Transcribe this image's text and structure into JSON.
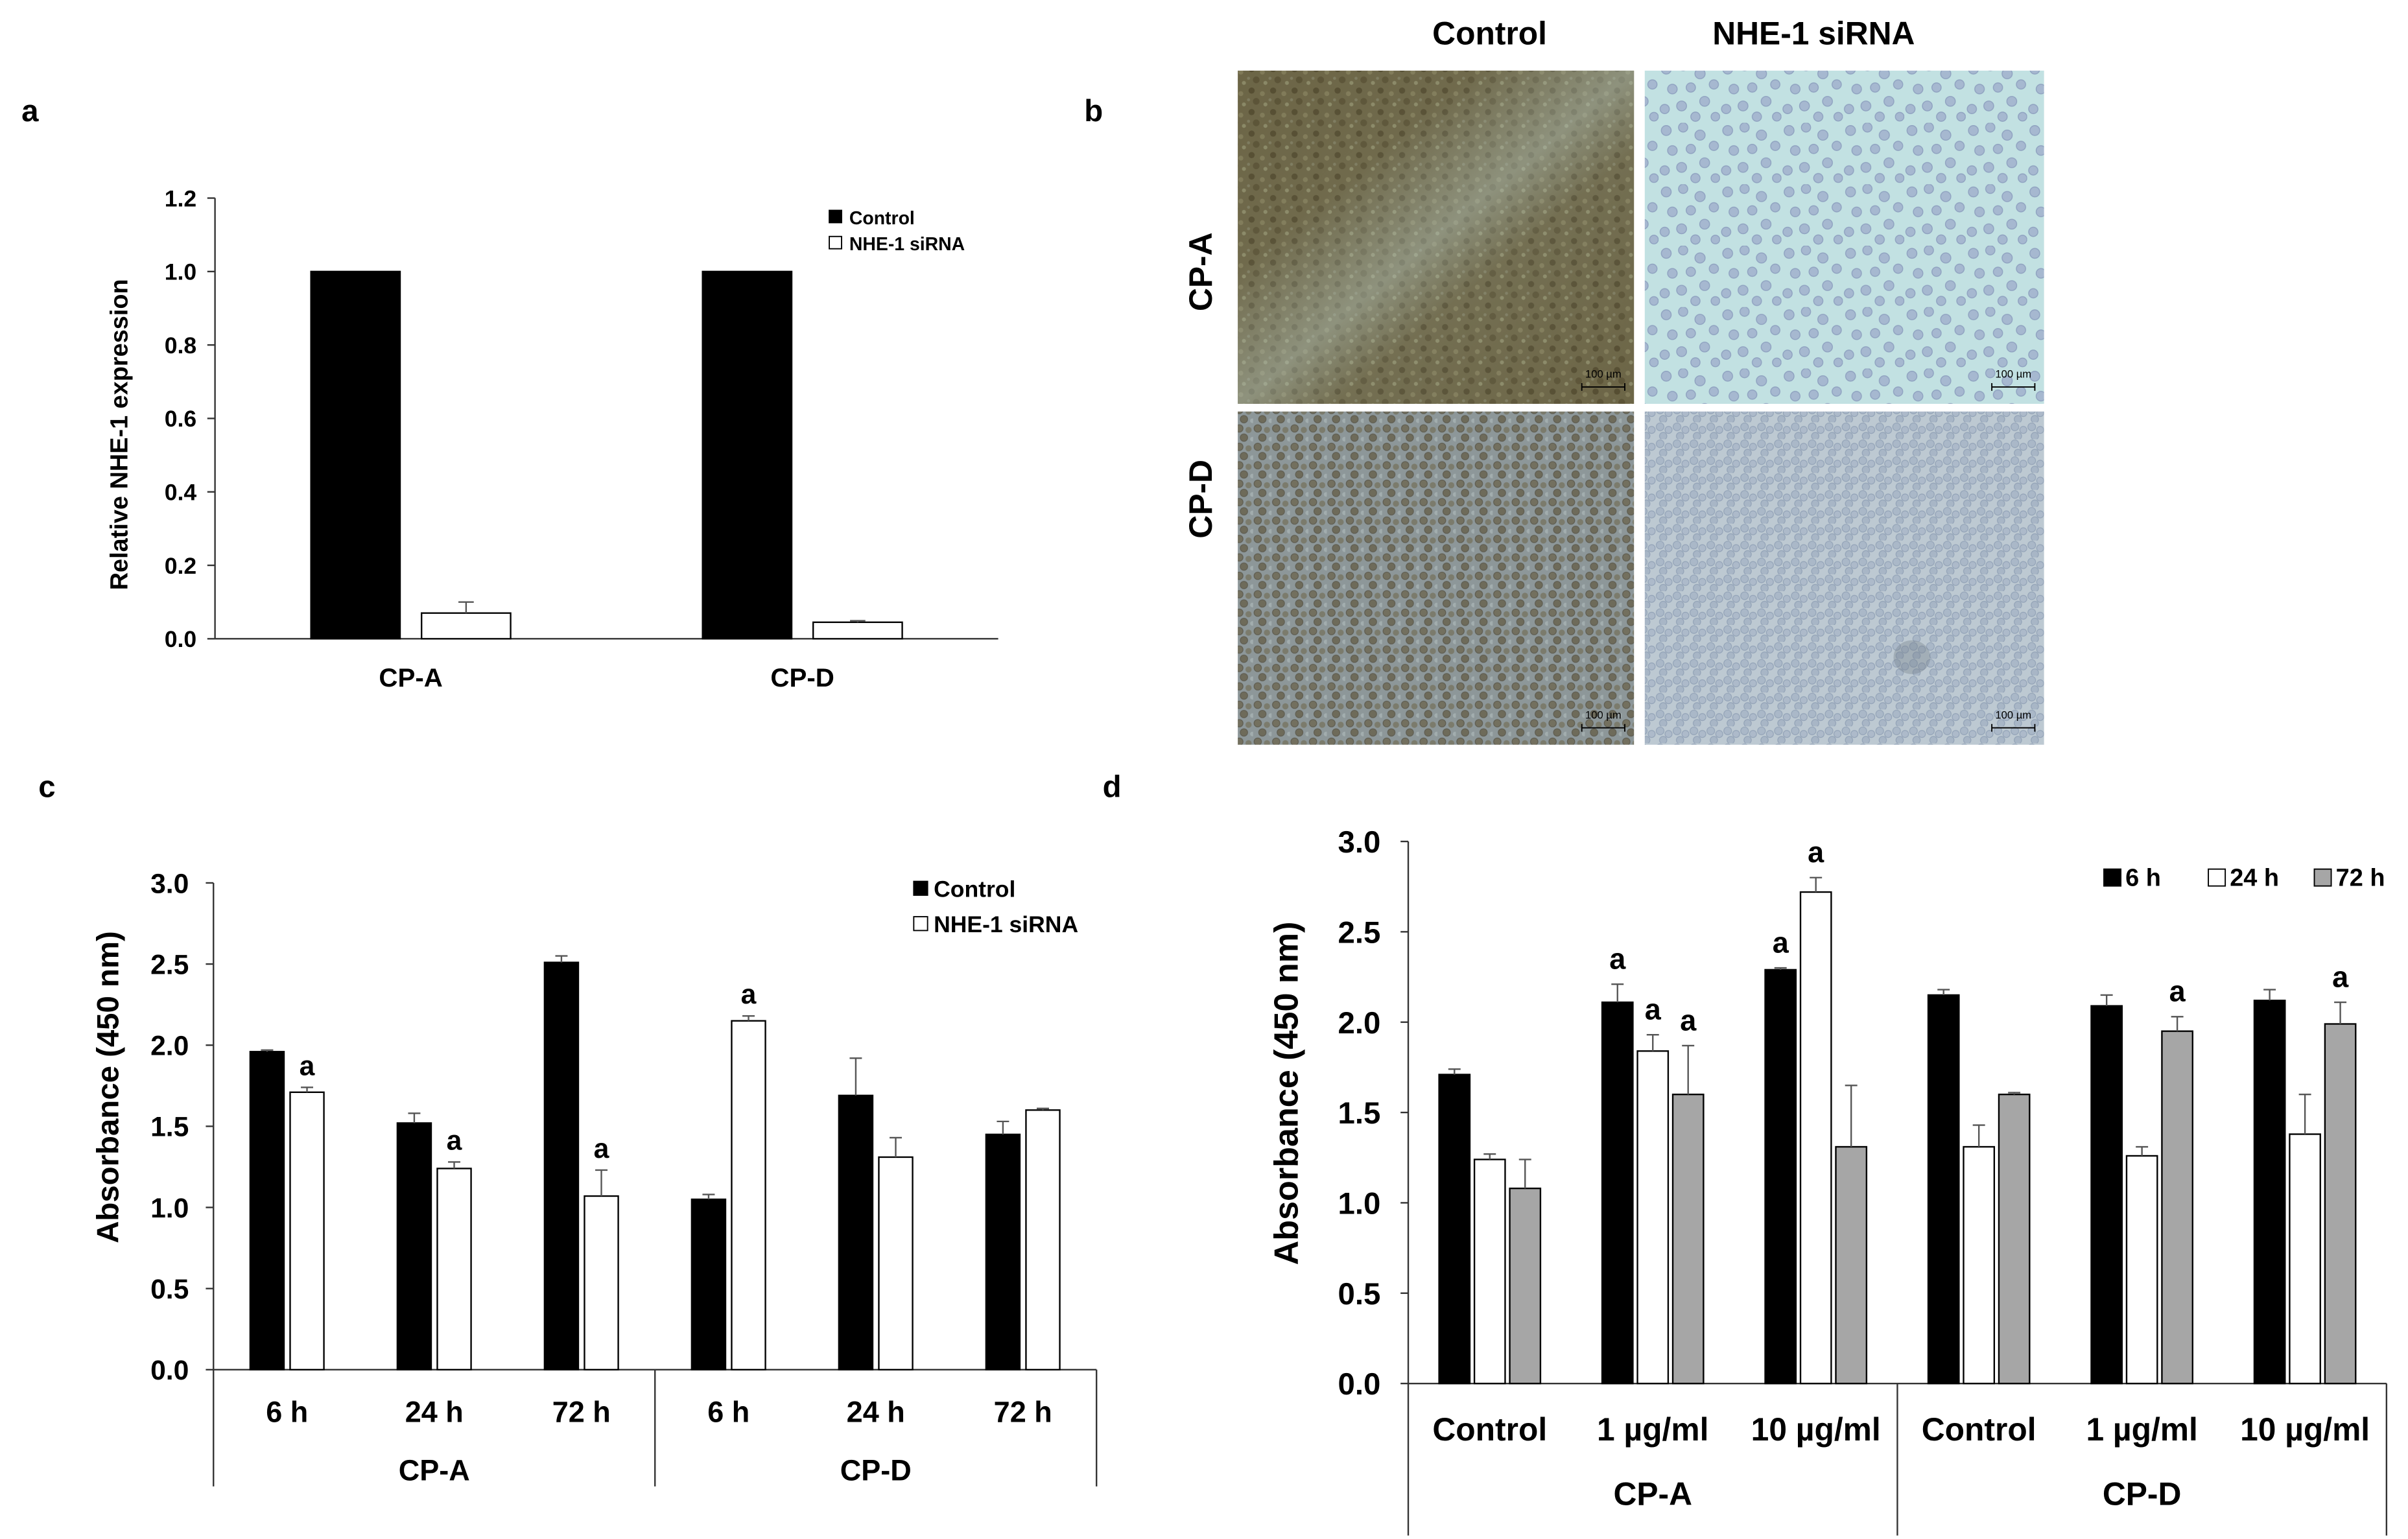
{
  "chart_data": [
    {
      "panel": "a",
      "type": "bar",
      "ylabel": "Relative NHE-1 expression",
      "ylim": [
        0,
        1.2
      ],
      "yticks": [
        "0.0",
        "0.2",
        "0.4",
        "0.6",
        "0.8",
        "1.0",
        "1.2"
      ],
      "categories": [
        "CP-A",
        "CP-D"
      ],
      "series": [
        {
          "name": "Control",
          "color": "#000000",
          "values": [
            1.0,
            1.0
          ],
          "errors": [
            0,
            0
          ],
          "markers": [
            "",
            ""
          ]
        },
        {
          "name": "NHE-1 siRNA",
          "color": "#ffffff",
          "values": [
            0.07,
            0.045
          ],
          "errors": [
            0.03,
            0.004
          ],
          "markers": [
            "",
            ""
          ]
        }
      ],
      "legend": "top-right",
      "grid": false
    },
    {
      "panel": "c",
      "type": "bar",
      "ylabel": "Absorbance (450 nm)",
      "ylim": [
        0,
        3.0
      ],
      "yticks": [
        "0.0",
        "0.5",
        "1.0",
        "1.5",
        "2.0",
        "2.5",
        "3.0"
      ],
      "groups": [
        {
          "label": "CP-A",
          "categories": [
            "6 h",
            "24 h",
            "72 h"
          ]
        },
        {
          "label": "CP-D",
          "categories": [
            "6 h",
            "24 h",
            "72 h"
          ]
        }
      ],
      "series": [
        {
          "name": "Control",
          "color": "#000000",
          "values": [
            1.96,
            1.52,
            2.51,
            1.05,
            1.69,
            1.45
          ],
          "errors": [
            0.01,
            0.06,
            0.04,
            0.03,
            0.23,
            0.08
          ],
          "markers": [
            "",
            "",
            "",
            "",
            "",
            ""
          ]
        },
        {
          "name": "NHE-1 siRNA",
          "color": "#ffffff",
          "values": [
            1.71,
            1.24,
            1.07,
            2.15,
            1.31,
            1.6
          ],
          "errors": [
            0.03,
            0.04,
            0.16,
            0.03,
            0.12,
            0.01
          ],
          "markers": [
            "a",
            "a",
            "a",
            "a",
            "",
            ""
          ]
        }
      ],
      "legend": "top-right",
      "grid": false
    },
    {
      "panel": "d",
      "type": "bar",
      "ylabel": "Absorbance (450 nm)",
      "ylim": [
        0,
        3.0
      ],
      "yticks": [
        "0.0",
        "0.5",
        "1.0",
        "1.5",
        "2.0",
        "2.5",
        "3.0"
      ],
      "groups": [
        {
          "label": "CP-A",
          "categories": [
            "Control",
            "1 µg/ml",
            "10 µg/ml"
          ]
        },
        {
          "label": "CP-D",
          "categories": [
            "Control",
            "1 µg/ml",
            "10 µg/ml"
          ]
        }
      ],
      "series": [
        {
          "name": "6 h",
          "color": "#000000",
          "values": [
            1.71,
            2.11,
            2.29,
            2.15,
            2.09,
            2.12
          ],
          "errors": [
            0.03,
            0.1,
            0.01,
            0.03,
            0.06,
            0.06
          ],
          "markers": [
            "",
            "a",
            "a",
            "",
            "",
            ""
          ]
        },
        {
          "name": "24 h",
          "color": "#ffffff",
          "values": [
            1.24,
            1.84,
            2.72,
            1.31,
            1.26,
            1.38
          ],
          "errors": [
            0.03,
            0.09,
            0.08,
            0.12,
            0.05,
            0.22
          ],
          "markers": [
            "",
            "a",
            "a",
            "",
            "",
            ""
          ]
        },
        {
          "name": "72 h",
          "color": "#a6a6a6",
          "values": [
            1.08,
            1.6,
            1.31,
            1.6,
            1.95,
            1.99
          ],
          "errors": [
            0.16,
            0.27,
            0.34,
            0.01,
            0.08,
            0.12
          ],
          "markers": [
            "",
            "a",
            "",
            "",
            "a",
            "a"
          ]
        }
      ],
      "legend": "top-right",
      "grid": false
    }
  ],
  "micrographs": {
    "panel": "b",
    "columns": [
      "Control",
      "NHE-1 siRNA"
    ],
    "rows": [
      "CP-A",
      "CP-D"
    ],
    "scale_bar": "100 µm"
  }
}
